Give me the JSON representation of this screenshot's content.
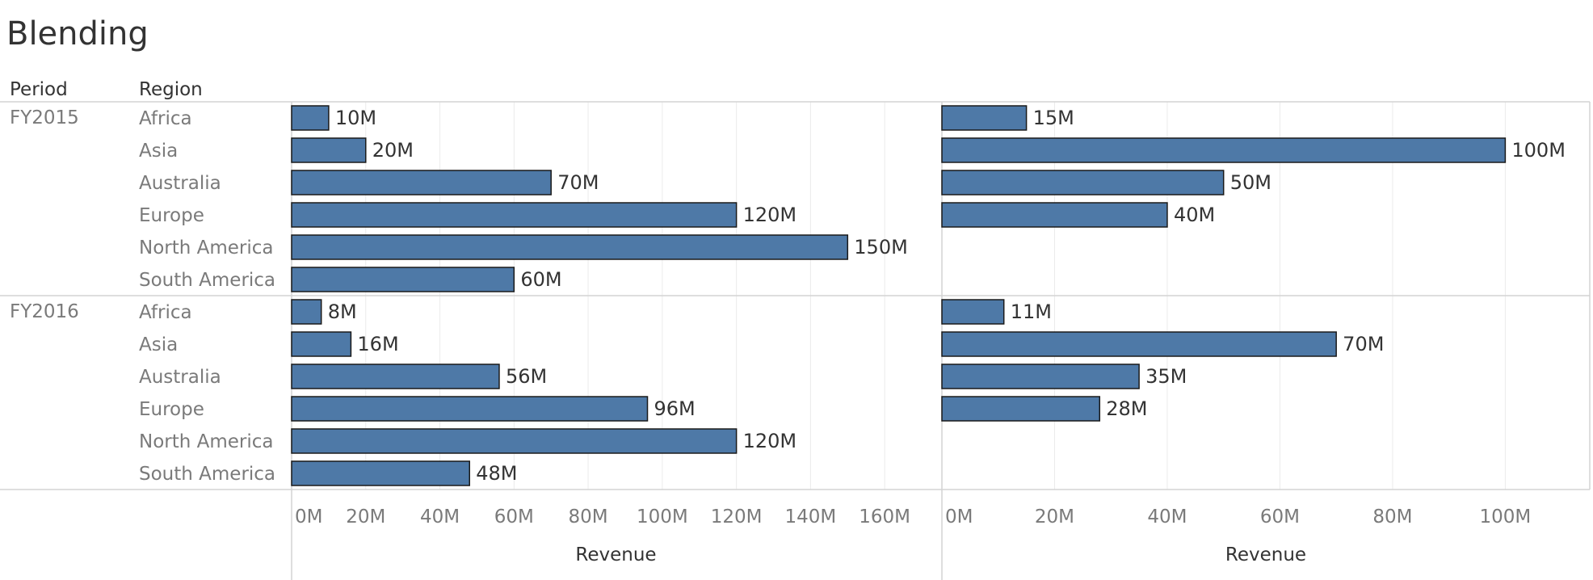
{
  "title": "Blending",
  "headers": {
    "period": "Period",
    "region": "Region"
  },
  "colors": {
    "bar": "#4e79a7",
    "bar_border": "#1a1a1a",
    "grid": "#ebebeb",
    "divider": "#d4d4d4"
  },
  "chart_data": {
    "type": "bar",
    "orientation": "horizontal",
    "title": "Blending",
    "groups": [
      {
        "period": "FY2015",
        "rows": [
          {
            "region": "Africa",
            "left": 10,
            "left_label": "10M",
            "right": 15,
            "right_label": "15M"
          },
          {
            "region": "Asia",
            "left": 20,
            "left_label": "20M",
            "right": 100,
            "right_label": "100M"
          },
          {
            "region": "Australia",
            "left": 70,
            "left_label": "70M",
            "right": 50,
            "right_label": "50M"
          },
          {
            "region": "Europe",
            "left": 120,
            "left_label": "120M",
            "right": 40,
            "right_label": "40M"
          },
          {
            "region": "North America",
            "left": 150,
            "left_label": "150M",
            "right": null,
            "right_label": ""
          },
          {
            "region": "South America",
            "left": 60,
            "left_label": "60M",
            "right": null,
            "right_label": ""
          }
        ]
      },
      {
        "period": "FY2016",
        "rows": [
          {
            "region": "Africa",
            "left": 8,
            "left_label": "8M",
            "right": 11,
            "right_label": "11M"
          },
          {
            "region": "Asia",
            "left": 16,
            "left_label": "16M",
            "right": 70,
            "right_label": "70M"
          },
          {
            "region": "Australia",
            "left": 56,
            "left_label": "56M",
            "right": 35,
            "right_label": "35M"
          },
          {
            "region": "Europe",
            "left": 96,
            "left_label": "96M",
            "right": 28,
            "right_label": "28M"
          },
          {
            "region": "North America",
            "left": 120,
            "left_label": "120M",
            "right": null,
            "right_label": ""
          },
          {
            "region": "South America",
            "left": 48,
            "left_label": "48M",
            "right": null,
            "right_label": ""
          }
        ]
      }
    ],
    "panes": [
      {
        "xlabel": "Revenue",
        "xlim": [
          0,
          175
        ],
        "ticks": [
          0,
          20,
          40,
          60,
          80,
          100,
          120,
          140,
          160
        ],
        "tick_labels": [
          "0M",
          "20M",
          "40M",
          "60M",
          "80M",
          "100M",
          "120M",
          "140M",
          "160M"
        ]
      },
      {
        "xlabel": "Revenue",
        "xlim": [
          0,
          115
        ],
        "ticks": [
          0,
          20,
          40,
          60,
          80,
          100
        ],
        "tick_labels": [
          "0M",
          "20M",
          "40M",
          "60M",
          "80M",
          "100M"
        ]
      }
    ],
    "grid": true
  }
}
